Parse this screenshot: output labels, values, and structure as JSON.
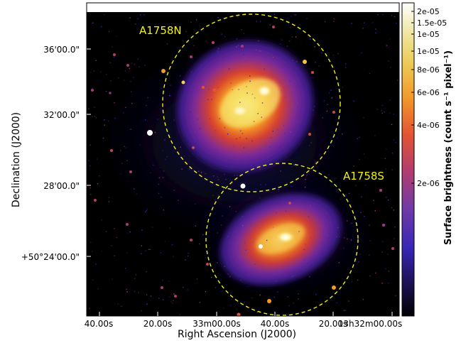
{
  "figure": {
    "xlabel": "Right Ascension (J2000)",
    "ylabel": "Declination (J2000)",
    "colorbar_label": "Surface brightness (count s⁻¹ pixel⁻¹)",
    "x_ticks": [
      "40.00s",
      "20.00s",
      "33m00.00s",
      "40.00s",
      "20.00s",
      "13h32m00.00s"
    ],
    "y_ticks": [
      "36'00.0\"",
      "32'00.0\"",
      "28'00.0\"",
      "+50°24'00.0\""
    ],
    "colorbar_ticks": [
      "2e-05",
      "1.5e-05",
      "1e-05",
      "1e-05",
      "8e-06",
      "6e-06",
      "4e-06",
      "2e-06"
    ],
    "colormap": "CMRmap (black-purple-red-orange-yellow-white)",
    "background_color": "#000000",
    "annotation_color": "#f2f20a"
  },
  "clusters": [
    {
      "label": "A1758N",
      "region_style": "dashed-circle"
    },
    {
      "label": "A1758S",
      "region_style": "dashed-circle"
    }
  ]
}
